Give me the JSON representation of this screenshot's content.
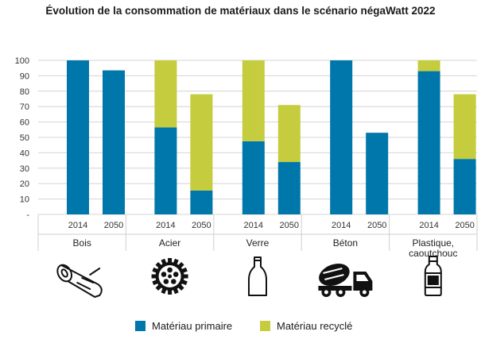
{
  "chart_data": {
    "type": "bar",
    "stacked": true,
    "title": "Évolution de la consommation de matériaux dans le scénario négaWatt 2022",
    "ylim": [
      0,
      100
    ],
    "yticks": [
      "100",
      "90",
      "80",
      "70",
      "60",
      "50",
      "40",
      "30",
      "20",
      "10",
      "-"
    ],
    "groups": [
      {
        "name": "Bois",
        "lines": [
          "Bois"
        ],
        "icon": "log-icon"
      },
      {
        "name": "Acier",
        "lines": [
          "Acier"
        ],
        "icon": "gear-icon"
      },
      {
        "name": "Verre",
        "lines": [
          "Verre"
        ],
        "icon": "bottle-icon"
      },
      {
        "name": "Béton",
        "lines": [
          "Béton"
        ],
        "icon": "concrete-mixer-icon"
      },
      {
        "name": "Plastique, caoutchouc",
        "lines": [
          "Plastique,",
          "caoutchouc"
        ],
        "icon": "plastic-bottle-icon"
      }
    ],
    "years": [
      "2014",
      "2050"
    ],
    "series": [
      {
        "name": "Matériau primaire",
        "color": "#0077aa",
        "values": [
          [
            100,
            93.5
          ],
          [
            56.5,
            15.5
          ],
          [
            47.5,
            34
          ],
          [
            100,
            53
          ],
          [
            93,
            36
          ]
        ]
      },
      {
        "name": "Matériau recyclé",
        "color": "#c5cc3d",
        "values": [
          [
            0,
            0
          ],
          [
            43.5,
            62.5
          ],
          [
            52.5,
            37
          ],
          [
            0,
            0
          ],
          [
            7,
            42
          ]
        ]
      }
    ]
  }
}
